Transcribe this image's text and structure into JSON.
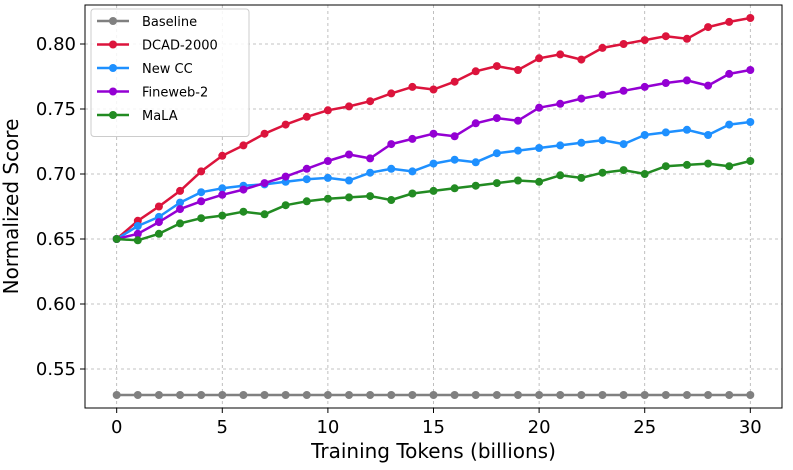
{
  "chart_data": {
    "type": "line",
    "title": "",
    "xlabel": "Training Tokens (billions)",
    "ylabel": "Normalized Score",
    "xlim": [
      -1.5,
      31.5
    ],
    "ylim": [
      0.52,
      0.83
    ],
    "grid": true,
    "legend_position": "top-left",
    "x_ticks": [
      0,
      5,
      10,
      15,
      20,
      25,
      30
    ],
    "y_ticks": [
      0.55,
      0.6,
      0.65,
      0.7,
      0.75,
      0.8
    ],
    "x_tick_labels": [
      "0",
      "5",
      "10",
      "15",
      "20",
      "25",
      "30"
    ],
    "y_tick_labels": [
      "0.55",
      "0.60",
      "0.65",
      "0.70",
      "0.75",
      "0.80"
    ],
    "x": [
      0,
      1,
      2,
      3,
      4,
      5,
      6,
      7,
      8,
      9,
      10,
      11,
      12,
      13,
      14,
      15,
      16,
      17,
      18,
      19,
      20,
      21,
      22,
      23,
      24,
      25,
      26,
      27,
      28,
      29,
      30
    ],
    "series": [
      {
        "name": "Baseline",
        "color": "#808080",
        "values": [
          0.53,
          0.53,
          0.53,
          0.53,
          0.53,
          0.53,
          0.53,
          0.53,
          0.53,
          0.53,
          0.53,
          0.53,
          0.53,
          0.53,
          0.53,
          0.53,
          0.53,
          0.53,
          0.53,
          0.53,
          0.53,
          0.53,
          0.53,
          0.53,
          0.53,
          0.53,
          0.53,
          0.53,
          0.53,
          0.53,
          0.53
        ]
      },
      {
        "name": "DCAD-2000",
        "color": "#dc143c",
        "values": [
          0.65,
          0.664,
          0.675,
          0.687,
          0.702,
          0.714,
          0.722,
          0.731,
          0.738,
          0.744,
          0.749,
          0.752,
          0.756,
          0.762,
          0.767,
          0.765,
          0.771,
          0.779,
          0.783,
          0.78,
          0.789,
          0.792,
          0.788,
          0.797,
          0.8,
          0.803,
          0.806,
          0.804,
          0.813,
          0.817,
          0.82
        ]
      },
      {
        "name": "New CC",
        "color": "#1e90ff",
        "values": [
          0.65,
          0.66,
          0.667,
          0.678,
          0.686,
          0.689,
          0.691,
          0.692,
          0.694,
          0.696,
          0.697,
          0.695,
          0.701,
          0.704,
          0.702,
          0.708,
          0.711,
          0.709,
          0.716,
          0.718,
          0.72,
          0.722,
          0.724,
          0.726,
          0.723,
          0.73,
          0.732,
          0.734,
          0.73,
          0.738,
          0.74
        ]
      },
      {
        "name": "Fineweb-2",
        "color": "#9400d3",
        "values": [
          0.65,
          0.654,
          0.663,
          0.673,
          0.679,
          0.684,
          0.688,
          0.693,
          0.698,
          0.704,
          0.71,
          0.715,
          0.712,
          0.723,
          0.727,
          0.731,
          0.729,
          0.739,
          0.743,
          0.741,
          0.751,
          0.754,
          0.758,
          0.761,
          0.764,
          0.767,
          0.77,
          0.772,
          0.768,
          0.777,
          0.78
        ]
      },
      {
        "name": "MaLA",
        "color": "#228b22",
        "values": [
          0.65,
          0.649,
          0.654,
          0.662,
          0.666,
          0.668,
          0.671,
          0.669,
          0.676,
          0.679,
          0.681,
          0.682,
          0.683,
          0.68,
          0.685,
          0.687,
          0.689,
          0.691,
          0.693,
          0.695,
          0.694,
          0.699,
          0.697,
          0.701,
          0.703,
          0.7,
          0.706,
          0.707,
          0.708,
          0.706,
          0.71
        ]
      }
    ]
  }
}
